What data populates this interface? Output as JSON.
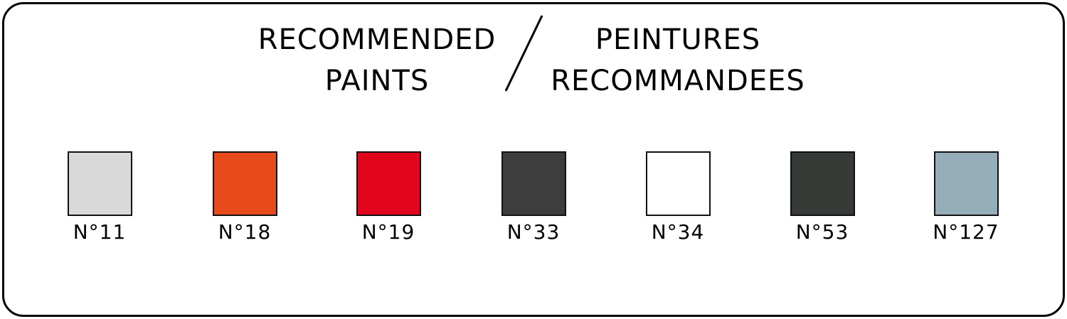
{
  "header": {
    "en_line1": "RECOMMENDED",
    "en_line2": "PAINTS",
    "fr_line1": "PEINTURES",
    "fr_line2": "RECOMMANDEES"
  },
  "paints": [
    {
      "label": "N°11",
      "color": "#d9d9d9"
    },
    {
      "label": "N°18",
      "color": "#e84a1b"
    },
    {
      "label": "N°19",
      "color": "#e1061c"
    },
    {
      "label": "N°33",
      "color": "#3d3d3d"
    },
    {
      "label": "N°34",
      "color": "#ffffff"
    },
    {
      "label": "N°53",
      "color": "#353a37"
    },
    {
      "label": "N°127",
      "color": "#96adba"
    }
  ]
}
